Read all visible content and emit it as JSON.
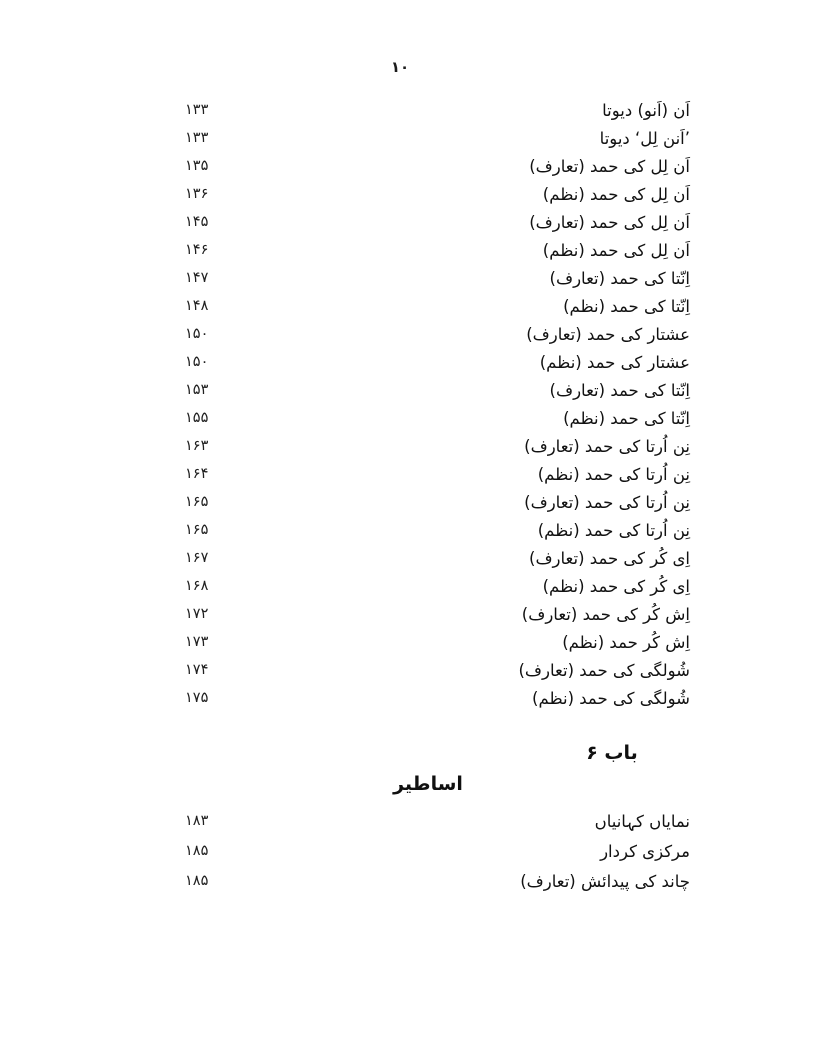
{
  "page": {
    "page_number": "۱۰"
  },
  "toc_entries": [
    {
      "title": "اَن (اَنو) دیوتا",
      "page": "۱۳۳"
    },
    {
      "title": "’اَنن لِل‘ دیوتا",
      "page": "۱۳۳"
    },
    {
      "title": "اَن لِل کی حمد (تعارف)",
      "page": "۱۳۵"
    },
    {
      "title": "اَن لِل کی حمد (نظم)",
      "page": "۱۳۶"
    },
    {
      "title": "اَن لِل کی حمد (تعارف)",
      "page": "۱۴۵"
    },
    {
      "title": "اَن لِل کی حمد (نظم)",
      "page": "۱۴۶"
    },
    {
      "title": "اِنّتا کی حمد (تعارف)",
      "page": "۱۴۷"
    },
    {
      "title": "اِنّتا کی حمد (نظم)",
      "page": "۱۴۸"
    },
    {
      "title": "عشتار کی حمد (تعارف)",
      "page": "۱۵۰"
    },
    {
      "title": "عشتار کی حمد (نظم)",
      "page": "۱۵۰"
    },
    {
      "title": "اِنّتا کی حمد (تعارف)",
      "page": "۱۵۳"
    },
    {
      "title": "اِنّتا کی حمد (نظم)",
      "page": "۱۵۵"
    },
    {
      "title": "نِن اُرتا کی حمد (تعارف)",
      "page": "۱۶۳"
    },
    {
      "title": "نِن اُرتا کی حمد (نظم)",
      "page": "۱۶۴"
    },
    {
      "title": "نِن اُرتا کی حمد (تعارف)",
      "page": "۱۶۵"
    },
    {
      "title": "نِن اُرتا کی حمد (نظم)",
      "page": "۱۶۵"
    },
    {
      "title": "اِی کُر کی حمد (تعارف)",
      "page": "۱۶۷"
    },
    {
      "title": "اِی کُر کی حمد (نظم)",
      "page": "۱۶۸"
    },
    {
      "title": "اِش کُر کی حمد (تعارف)",
      "page": "۱۷۲"
    },
    {
      "title": "اِش کُر حمد (نظم)",
      "page": "۱۷۳"
    },
    {
      "title": "شُولگی کی حمد (تعارف)",
      "page": "۱۷۴"
    },
    {
      "title": "شُولگی کی حمد (نظم)",
      "page": "۱۷۵"
    }
  ],
  "section": {
    "chapter_label": "باب ۶",
    "chapter_title": "اساطیر"
  },
  "section_entries": [
    {
      "title": "نمایاں کہانیاں",
      "page": "۱۸۳"
    },
    {
      "title": "مرکزی کردار",
      "page": "۱۸۵"
    },
    {
      "title": "چاند کی پیدائش (تعارف)",
      "page": "۱۸۵"
    }
  ]
}
